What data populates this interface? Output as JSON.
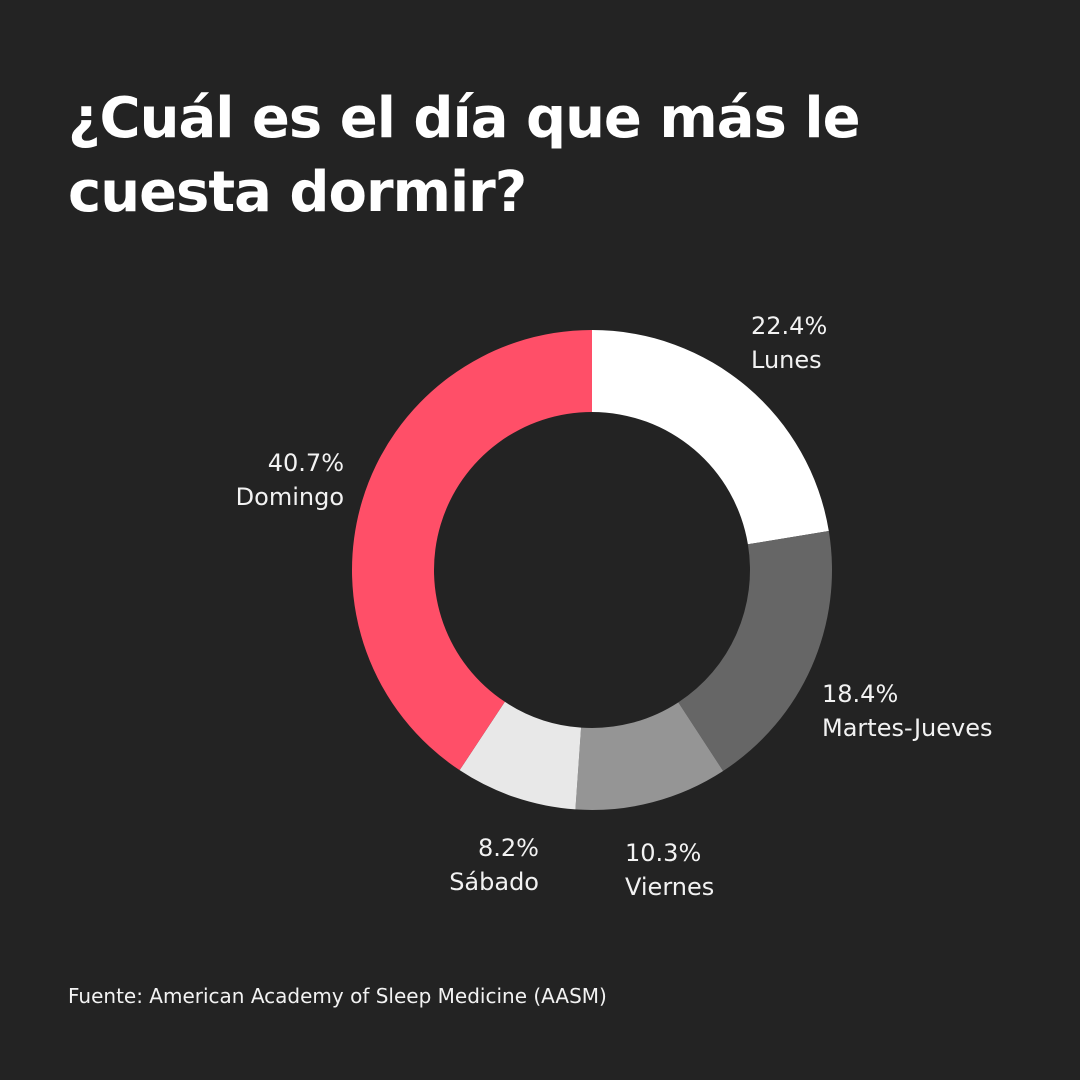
{
  "title": "¿Cuál es el día que más le cuesta dormir?",
  "source": "Fuente: American Academy of Sleep Medicine (AASM)",
  "colors": {
    "background": "#232323",
    "text": "#ffffff",
    "accent": "#ff4f68"
  },
  "chart_data": {
    "type": "pie",
    "variant": "donut",
    "title": "¿Cuál es el día que más le cuesta dormir?",
    "slices": [
      {
        "label": "Lunes",
        "value": 22.4,
        "value_label": "22.4%",
        "color": "#ffffff"
      },
      {
        "label": "Martes-Jueves",
        "value": 18.4,
        "value_label": "18.4%",
        "color": "#666666"
      },
      {
        "label": "Viernes",
        "value": 10.3,
        "value_label": "10.3%",
        "color": "#959595"
      },
      {
        "label": "Sábado",
        "value": 8.2,
        "value_label": "8.2%",
        "color": "#e8e8e8"
      },
      {
        "label": "Domingo",
        "value": 40.7,
        "value_label": "40.7%",
        "color": "#ff4f68"
      }
    ],
    "legend": "none",
    "grid": false
  }
}
